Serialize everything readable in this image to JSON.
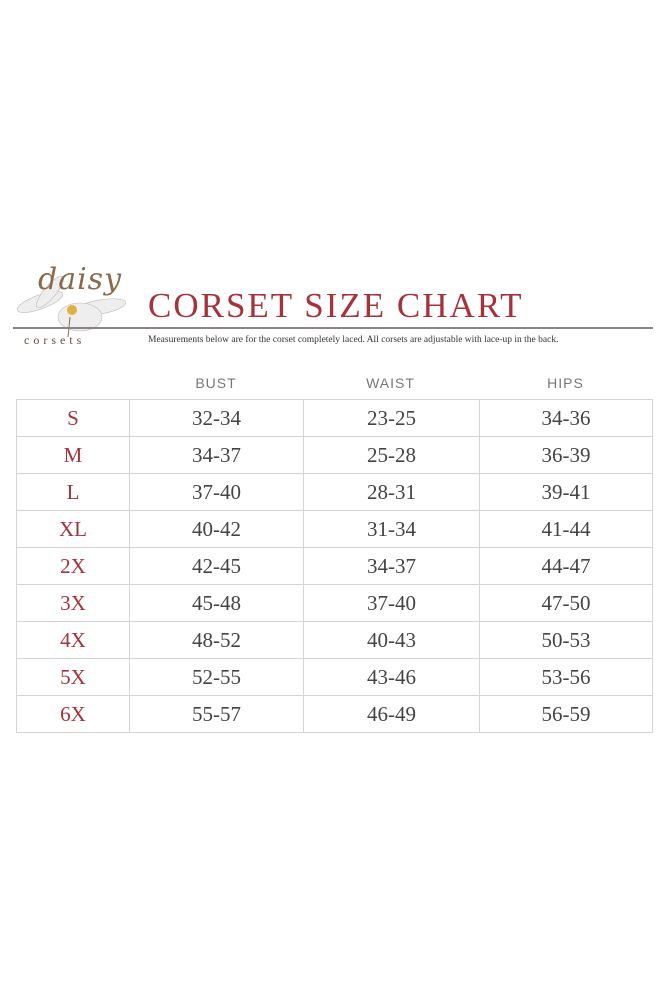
{
  "logo": {
    "script": "daisy",
    "sub": "corsets"
  },
  "title": "CORSET SIZE CHART",
  "subtitle": "Measurements below are for the corset completely laced.  All corsets are adjustable with lace-up in the back.",
  "colors": {
    "accent": "#a8323a",
    "text": "#444444",
    "grid": "#d4d4d4"
  },
  "table": {
    "headers": [
      "BUST",
      "WAIST",
      "HIPS"
    ],
    "rows": [
      {
        "size": "S",
        "bust": "32-34",
        "waist": "23-25",
        "hips": "34-36"
      },
      {
        "size": "M",
        "bust": "34-37",
        "waist": "25-28",
        "hips": "36-39"
      },
      {
        "size": "L",
        "bust": "37-40",
        "waist": "28-31",
        "hips": "39-41"
      },
      {
        "size": "XL",
        "bust": "40-42",
        "waist": "31-34",
        "hips": "41-44"
      },
      {
        "size": "2X",
        "bust": "42-45",
        "waist": "34-37",
        "hips": "44-47"
      },
      {
        "size": "3X",
        "bust": "45-48",
        "waist": "37-40",
        "hips": "47-50"
      },
      {
        "size": "4X",
        "bust": "48-52",
        "waist": "40-43",
        "hips": "50-53"
      },
      {
        "size": "5X",
        "bust": "52-55",
        "waist": "43-46",
        "hips": "53-56"
      },
      {
        "size": "6X",
        "bust": "55-57",
        "waist": "46-49",
        "hips": "56-59"
      }
    ]
  }
}
